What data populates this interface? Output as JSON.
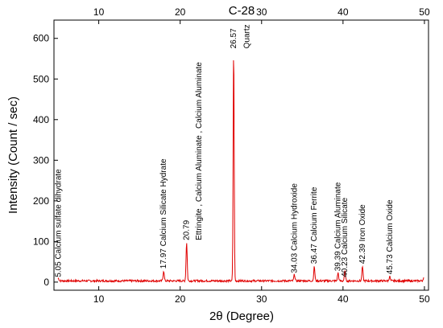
{
  "chart_data": {
    "type": "line",
    "title": "C-28",
    "xlabel": "2θ (Degree)",
    "ylabel": "Intensity (Count / sec)",
    "xlim": [
      4.5,
      50.5
    ],
    "ylim": [
      -20,
      645
    ],
    "x_ticks": [
      10,
      20,
      30,
      40,
      50
    ],
    "y_ticks": [
      0,
      100,
      200,
      300,
      400,
      500,
      600
    ],
    "grid": false,
    "series_color": "#e00000",
    "baseline": 3,
    "peaks": [
      {
        "x": 5.05,
        "y": 9
      },
      {
        "x": 17.97,
        "y": 28
      },
      {
        "x": 20.79,
        "y": 98
      },
      {
        "x": 26.57,
        "y": 572
      },
      {
        "x": 34.03,
        "y": 19
      },
      {
        "x": 36.47,
        "y": 38
      },
      {
        "x": 39.39,
        "y": 23
      },
      {
        "x": 40.23,
        "y": 27
      },
      {
        "x": 42.39,
        "y": 38
      },
      {
        "x": 45.73,
        "y": 14
      },
      {
        "x": 49.9,
        "y": 10
      }
    ],
    "annotations": [
      {
        "text": "5.05 Calcium sulfate dihydrate",
        "x": 5.05,
        "y": 12
      },
      {
        "text": "17.97 Calcium Silicate Hydrate",
        "x": 17.97,
        "y": 33
      },
      {
        "text": "20.79",
        "x": 20.79,
        "y": 103
      },
      {
        "text": "Ettringite , Calcium Aluminate , Calcium Aluminate",
        "x": 22.3,
        "y": 103
      },
      {
        "text": "26.57",
        "x": 26.57,
        "y": 575
      },
      {
        "text": "Quartz",
        "x": 28.2,
        "y": 575
      },
      {
        "text": "34.03 Calcium Hydroxide",
        "x": 34.03,
        "y": 22
      },
      {
        "text": "36.47 Calcium Ferrite",
        "x": 36.47,
        "y": 45
      },
      {
        "text": "39.39 Calcium Aluminate",
        "x": 39.39,
        "y": 27
      },
      {
        "text": "40.23 Calcium Silicate",
        "x": 40.23,
        "y": 12
      },
      {
        "text": "42.39 Iron Oxide",
        "x": 42.39,
        "y": 45
      },
      {
        "text": "45.73 Calcium Oxide",
        "x": 45.73,
        "y": 19
      }
    ]
  }
}
